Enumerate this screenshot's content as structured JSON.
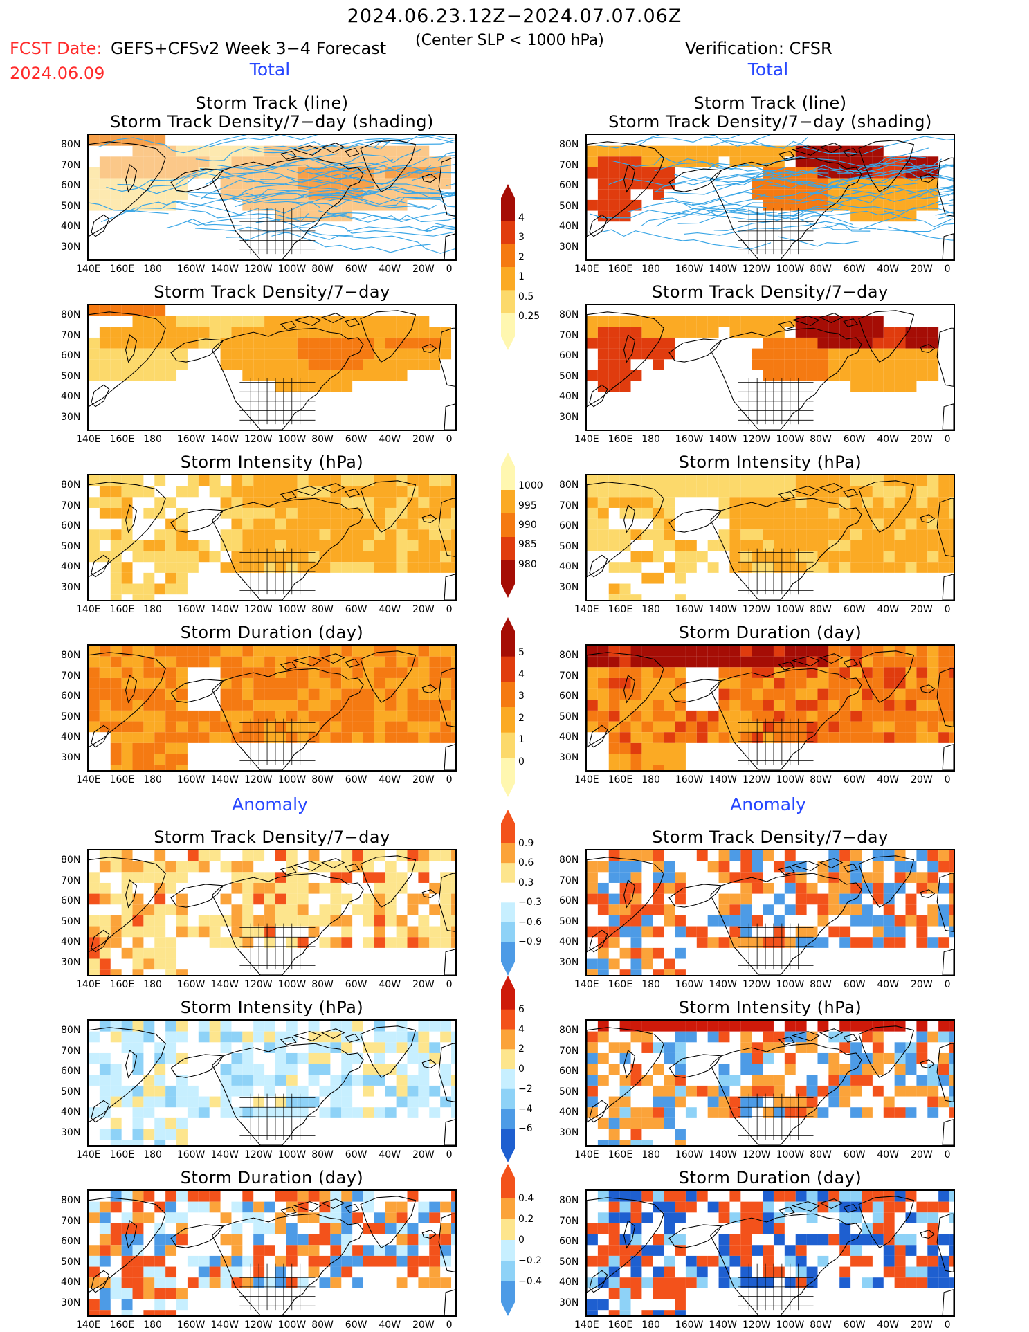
{
  "header": {
    "title": "2024.06.23.12Z−2024.07.07.06Z",
    "subtitle": "(Center SLP < 1000 hPa)",
    "fcst_label": "FCST Date:",
    "model_label": "GEFS+CFSv2 Week 3−4 Forecast",
    "fcst_date": "2024.06.09",
    "verification": "Verification: CFSR"
  },
  "sections": {
    "total_left": "Total",
    "total_right": "Total",
    "anomaly_left": "Anomaly",
    "anomaly_right": "Anomaly"
  },
  "panel_titles": {
    "track_line": "Storm Track (line)",
    "track_density_shading": "Storm Track Density/7−day (shading)",
    "track_density": "Storm Track Density/7−day",
    "intensity": "Storm Intensity (hPa)",
    "duration": "Storm Duration (day)"
  },
  "axes": {
    "lat_labels": [
      "80N",
      "70N",
      "60N",
      "50N",
      "40N",
      "30N"
    ],
    "lon_labels": [
      "140E",
      "160E",
      "180",
      "160W",
      "140W",
      "120W",
      "100W",
      "80W",
      "60W",
      "40W",
      "20W",
      "0"
    ]
  },
  "colorbars": {
    "density_total": [
      "4",
      "3",
      "2",
      "1",
      "0.5",
      "0.25"
    ],
    "intensity_total": [
      "1000",
      "995",
      "990",
      "985",
      "980"
    ],
    "duration_total": [
      "5",
      "4",
      "3",
      "2",
      "1",
      "0"
    ],
    "density_anom": [
      "0.9",
      "0.6",
      "0.3",
      "−0.3",
      "−0.6",
      "−0.9"
    ],
    "intensity_anom": [
      "6",
      "4",
      "2",
      "0",
      "−2",
      "−4",
      "−6"
    ],
    "duration_anom": [
      "0.4",
      "0.2",
      "0",
      "−0.2",
      "−0.4"
    ]
  },
  "palette": {
    "total": [
      "#fff7b0",
      "#fcd96b",
      "#fbaa24",
      "#f57a12",
      "#e03c0e",
      "#a50d05"
    ],
    "anom_pos": [
      "#fde58d",
      "#fba33a",
      "#f3521b",
      "#ce1a0a"
    ],
    "anom_neg": [
      "#c7efff",
      "#8ed2f7",
      "#4d9be6",
      "#1e5fd0"
    ],
    "track_line": "#3aa6e6",
    "section_blue": "#2646ff",
    "fcst_red": "#ff2a2a"
  }
}
